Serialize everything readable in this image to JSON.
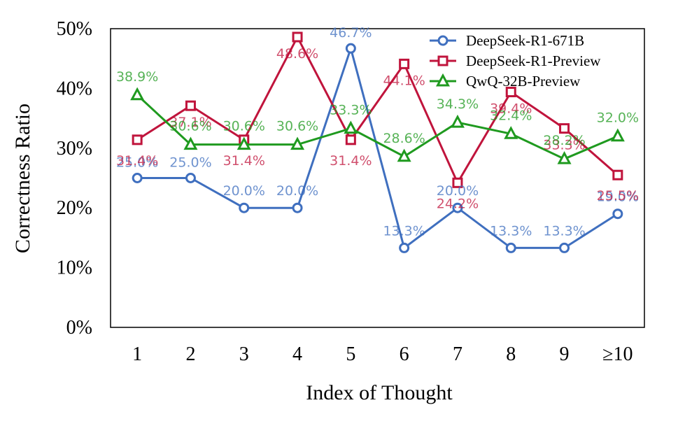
{
  "chart_data": {
    "type": "line",
    "categories": [
      "1",
      "2",
      "3",
      "4",
      "5",
      "6",
      "7",
      "8",
      "9",
      "≥10"
    ],
    "xlabel": "Index of Thought",
    "ylabel": "Correctness Ratio",
    "ylim": [
      0,
      50
    ],
    "yticks": [
      "0%",
      "10%",
      "20%",
      "30%",
      "40%",
      "50%"
    ],
    "grid": false,
    "legend_position": "top-right",
    "series": [
      {
        "name": "DeepSeek-R1-671B",
        "color": "#3f6fbf",
        "marker": "circle",
        "values": [
          25.0,
          25.0,
          20.0,
          20.0,
          46.7,
          13.3,
          20.0,
          13.3,
          13.3,
          19.0
        ],
        "labels": [
          "25.0%",
          "25.0%",
          "20.0%",
          "20.0%",
          "46.7%",
          "13.3%",
          "20.0%",
          "13.3%",
          "13.3%",
          "19.0%"
        ]
      },
      {
        "name": "DeepSeek-R1-Preview",
        "color": "#c0143c",
        "marker": "square",
        "values": [
          31.4,
          37.1,
          31.4,
          48.6,
          31.4,
          44.1,
          24.2,
          39.4,
          33.3,
          25.5
        ],
        "labels": [
          "31.4%",
          "37.1%",
          "31.4%",
          "48.6%",
          "31.4%",
          "44.1%",
          "24.2%",
          "39.4%",
          "33.3%",
          "25.5%"
        ]
      },
      {
        "name": "QwQ-32B-Preview",
        "color": "#1f9a1f",
        "marker": "triangle",
        "values": [
          38.9,
          30.6,
          30.6,
          30.6,
          33.3,
          28.6,
          34.3,
          32.4,
          28.2,
          32.0
        ],
        "labels": [
          "38.9%",
          "30.6%",
          "30.6%",
          "30.6%",
          "33.3%",
          "28.6%",
          "34.3%",
          "32.4%",
          "28.2%",
          "32.0%"
        ]
      }
    ]
  }
}
